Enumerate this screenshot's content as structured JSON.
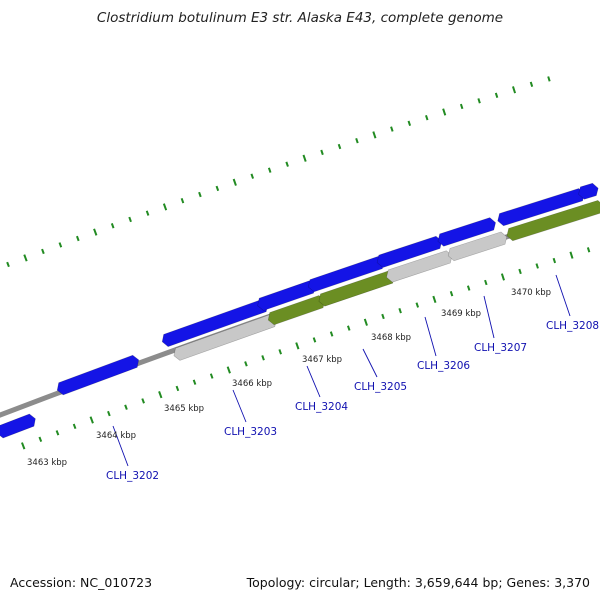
{
  "title": "Clostridium botulinum E3 str. Alaska E43, complete genome",
  "footer": {
    "accession": "Accession: NC_010723",
    "topology": "Topology: circular; Length: 3,659,644 bp; Genes: 3,370"
  },
  "colors": {
    "backbone": "#8c8c8c",
    "gene_blue": "#1414e6",
    "gene_green": "#6b8e23",
    "gene_grey": "#c8c8c8",
    "tick_green": "#228b22",
    "label_blue": "#1010b0"
  },
  "kbp_labels": [
    "3463 kbp",
    "3464 kbp",
    "3465 kbp",
    "3466 kbp",
    "3467 kbp",
    "3468 kbp",
    "3469 kbp",
    "3470 kbp"
  ],
  "gene_labels": [
    "CLH_3202",
    "CLH_3203",
    "CLH_3204",
    "CLH_3205",
    "CLH_3206",
    "CLH_3207",
    "CLH_3208"
  ]
}
